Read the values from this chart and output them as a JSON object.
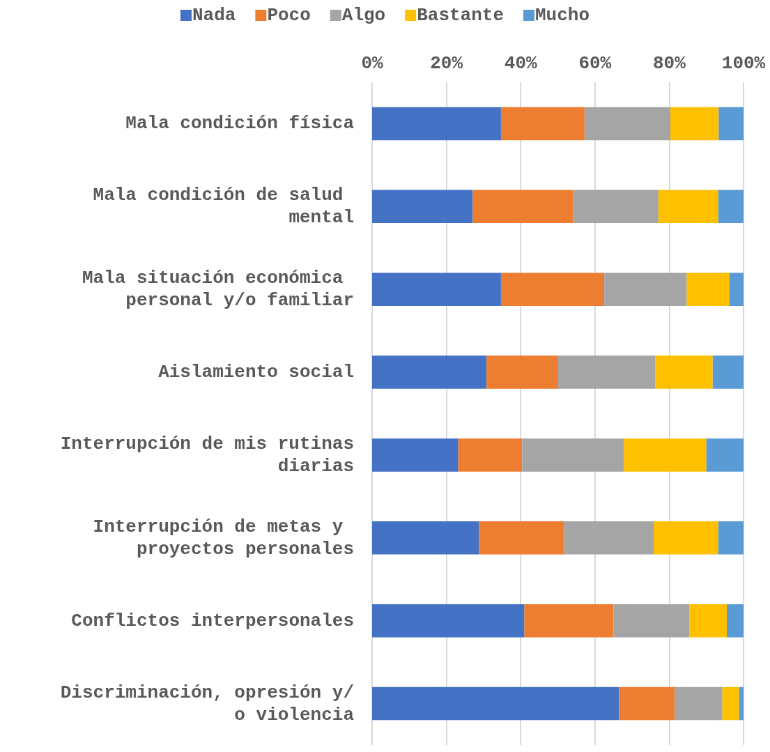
{
  "chart_data": {
    "type": "bar",
    "orientation": "horizontal",
    "stacked": true,
    "categories": [
      "Mala condición física",
      "Mala condición de salud mental",
      "Mala situación económica personal y/o familiar",
      "Aislamiento social",
      "Interrupción de mis rutinas diarias",
      "Interrupción de metas y proyectos personales",
      "Conflictos interpersonales",
      "Discriminación, opresión y/o violencia"
    ],
    "series": [
      {
        "name": "Nada",
        "color": "#4472c4",
        "values": [
          34.7,
          27.1,
          34.7,
          30.8,
          23.2,
          28.8,
          41.0,
          66.5
        ]
      },
      {
        "name": "Poco",
        "color": "#ed7d31",
        "values": [
          22.5,
          27.0,
          27.8,
          19.3,
          17.2,
          22.9,
          24.0,
          15.0
        ]
      },
      {
        "name": "Algo",
        "color": "#a5a5a5",
        "values": [
          23.1,
          23.0,
          22.2,
          26.1,
          27.4,
          24.1,
          20.4,
          12.8
        ]
      },
      {
        "name": "Bastante",
        "color": "#ffc000",
        "values": [
          13.0,
          16.1,
          11.5,
          15.5,
          22.2,
          17.4,
          10.1,
          4.5
        ]
      },
      {
        "name": "Mucho",
        "color": "#5b9bd5",
        "values": [
          6.7,
          6.8,
          3.8,
          8.3,
          10.0,
          6.8,
          4.5,
          1.2
        ]
      }
    ],
    "xlim": [
      0,
      100
    ],
    "xticks": [
      {
        "value": 0,
        "label": "0%"
      },
      {
        "value": 20,
        "label": "20%"
      },
      {
        "value": 40,
        "label": "40%"
      },
      {
        "value": 60,
        "label": "60%"
      },
      {
        "value": 80,
        "label": "80%"
      },
      {
        "value": 100,
        "label": "100%"
      }
    ],
    "grid": "x",
    "legend": "top"
  }
}
